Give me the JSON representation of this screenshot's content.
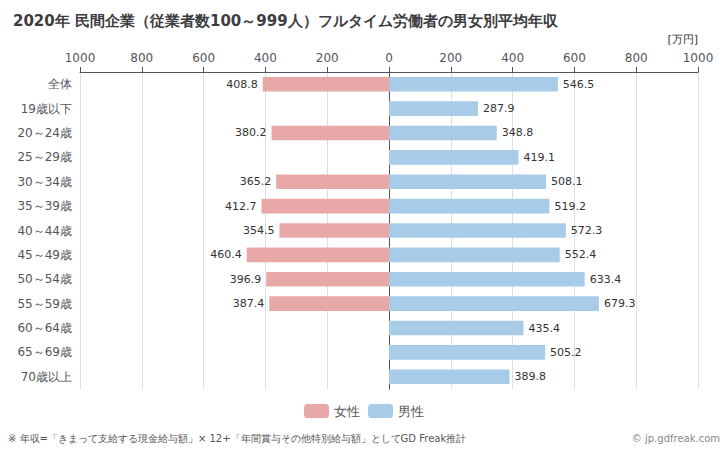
{
  "chart_data": {
    "type": "bar",
    "orientation": "horizontal",
    "title": "2020年 民間企業（従業者数100～999人）フルタイム労働者の男女別平均年収",
    "annotations": [
      "[万円]",
      "※ 年収=「きまって支給する現金給与額」× 12+「年間賞与その他特別給与額」としてGD Freak推計",
      "© jp.gdfreak.com"
    ],
    "categories": [
      "全体",
      "19歳以下",
      "20～24歳",
      "25～29歳",
      "30～34歳",
      "35～39歳",
      "40～44歳",
      "45～49歳",
      "50～54歳",
      "55～59歳",
      "60～64歳",
      "65～69歳",
      "70歳以上"
    ],
    "series": [
      {
        "name": "女性",
        "color": "#e8a8a8",
        "values": [
          408.8,
          0,
          380.2,
          0,
          365.2,
          412.7,
          354.5,
          460.4,
          396.9,
          387.4,
          0,
          0,
          0
        ]
      },
      {
        "name": "男性",
        "color": "#a8cce8",
        "values": [
          546.5,
          287.9,
          348.8,
          419.1,
          508.1,
          519.2,
          572.3,
          552.4,
          633.4,
          679.3,
          435.4,
          505.2,
          389.8
        ]
      }
    ],
    "xlim": [
      0,
      1000
    ],
    "xticks": [
      0,
      200,
      400,
      600,
      800,
      1000
    ],
    "grid": true,
    "data_labels": true,
    "legend": "bottom"
  }
}
